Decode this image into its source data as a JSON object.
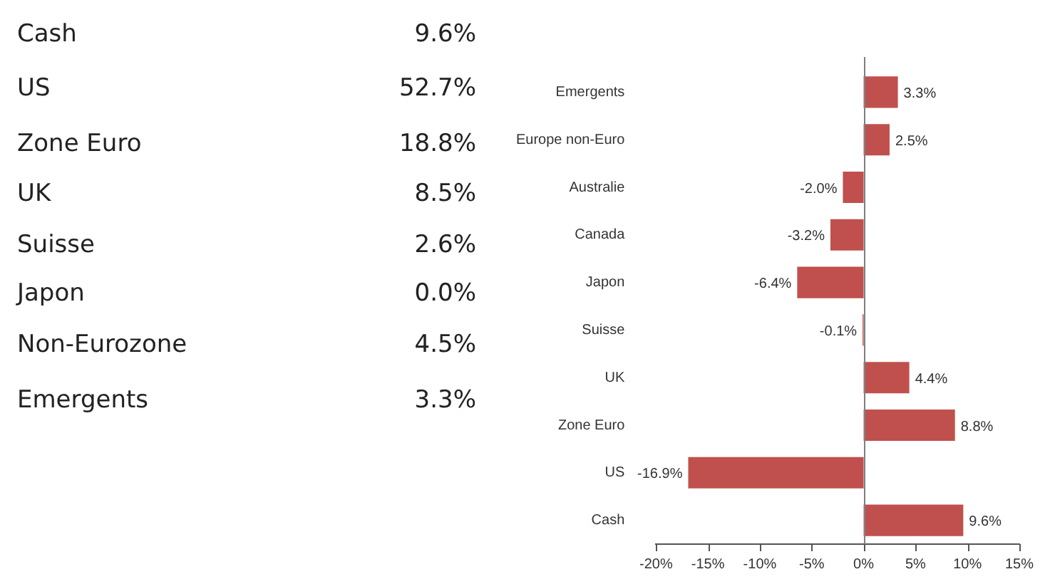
{
  "chart_data": [
    {
      "type": "other",
      "categories": [
        "Cash",
        "US",
        "Zone Euro",
        "UK",
        "Suisse",
        "Japon",
        "Non-Eurozone",
        "Emergents"
      ],
      "value_labels": [
        "9.6%",
        "52.7%",
        "18.8%",
        "8.5%",
        "2.6%",
        "0.0%",
        "4.5%",
        "3.3%"
      ]
    },
    {
      "type": "bar",
      "orientation": "horizontal",
      "categories": [
        "Emergents",
        "Europe non-Euro",
        "Australie",
        "Canada",
        "Japon",
        "Suisse",
        "UK",
        "Zone Euro",
        "US",
        "Cash"
      ],
      "values": [
        3.3,
        2.5,
        -2.0,
        -3.2,
        -6.4,
        -0.1,
        4.4,
        8.8,
        -16.9,
        9.6
      ],
      "value_labels": [
        "3.3%",
        "2.5%",
        "-2.0%",
        "-3.2%",
        "-6.4%",
        "-0.1%",
        "4.4%",
        "8.8%",
        "-16.9%",
        "9.6%"
      ],
      "color": "#c0504d",
      "xlim": [
        -20,
        15
      ],
      "xticks": [
        {
          "value": -20,
          "label": "-20%"
        },
        {
          "value": -15,
          "label": "-15%"
        },
        {
          "value": -10,
          "label": "-10%"
        },
        {
          "value": -5,
          "label": "-5%"
        },
        {
          "value": 0,
          "label": "0%"
        },
        {
          "value": 5,
          "label": "5%"
        },
        {
          "value": 10,
          "label": "10%"
        },
        {
          "value": 15,
          "label": "15%"
        }
      ],
      "ref_lines": [
        {
          "axis": "x",
          "value": 0,
          "color": "#7f7f7f"
        }
      ],
      "grid": false,
      "legend": false
    }
  ]
}
